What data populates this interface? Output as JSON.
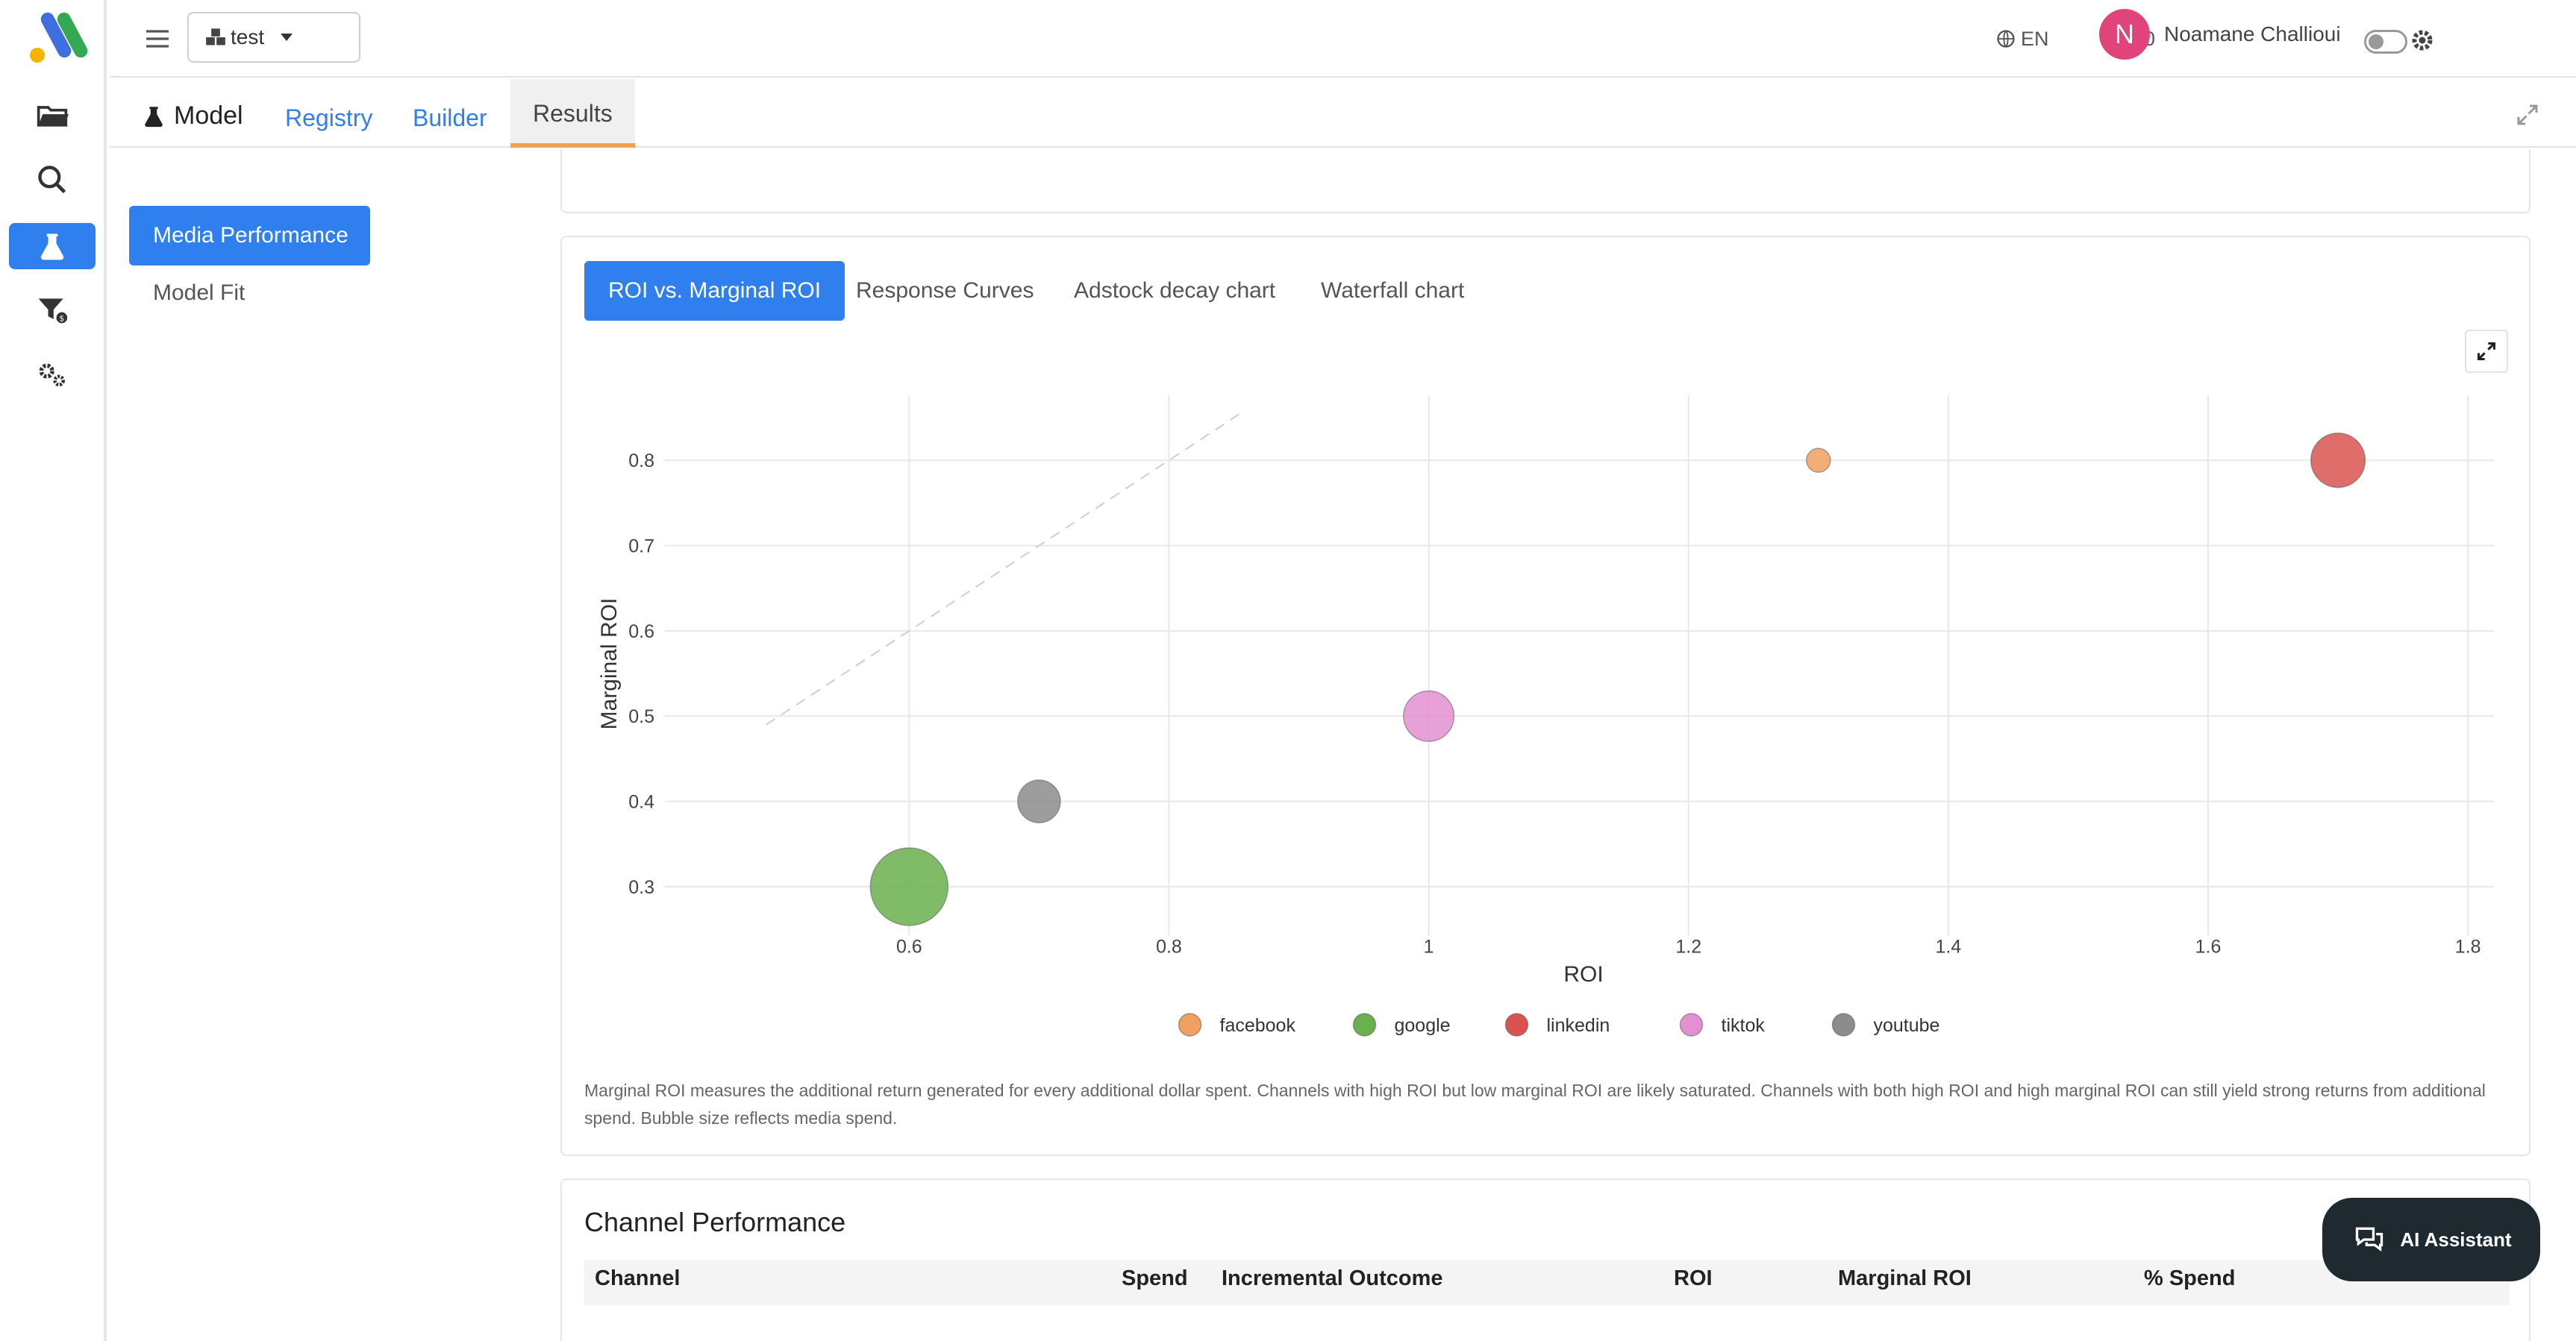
{
  "topbar": {
    "project": "test",
    "language": "EN",
    "counter": "90",
    "avatar_letter": "N",
    "username": "Noamane Challioui"
  },
  "tabs": {
    "model_label": "Model",
    "items": [
      "Registry",
      "Builder",
      "Results"
    ]
  },
  "leftnav": {
    "active": "Media Performance",
    "item": "Model Fit"
  },
  "chart_tabs": [
    "ROI vs. Marginal ROI",
    "Response Curves",
    "Adstock decay chart",
    "Waterfall chart"
  ],
  "chart_data": {
    "type": "scatter",
    "title": "",
    "xlabel": "ROI",
    "ylabel": "Marginal ROI",
    "xlim": [
      0.42,
      1.82
    ],
    "ylim": [
      0.25,
      0.85
    ],
    "xticks": [
      "0.6",
      "0.8",
      "1",
      "1.2",
      "1.4",
      "1.6",
      "1.8"
    ],
    "yticks": [
      "0.3",
      "0.4",
      "0.5",
      "0.6",
      "0.7",
      "0.8"
    ],
    "grid": true,
    "legend_position": "bottom-center",
    "reference_line": "y = x (dashed)",
    "series": [
      {
        "name": "facebook",
        "x": 1.3,
        "y": 0.8,
        "size_rel": 0.3,
        "color": "#f0a060"
      },
      {
        "name": "google",
        "x": 0.6,
        "y": 0.3,
        "size_rel": 1.0,
        "color": "#6ab04c"
      },
      {
        "name": "linkedin",
        "x": 1.7,
        "y": 0.8,
        "size_rel": 0.7,
        "color": "#d9534f"
      },
      {
        "name": "tiktok",
        "x": 1.0,
        "y": 0.5,
        "size_rel": 0.65,
        "color": "#e38fd1"
      },
      {
        "name": "youtube",
        "x": 0.7,
        "y": 0.4,
        "size_rel": 0.55,
        "color": "#8c8c8c"
      }
    ]
  },
  "caption": "Marginal ROI measures the additional return generated for every additional dollar spent. Channels with high ROI but low marginal ROI are likely saturated. Channels with both high ROI and high marginal ROI can still yield strong returns from additional spend. Bubble size reflects media spend.",
  "performance": {
    "title": "Channel Performance",
    "columns": [
      "Channel",
      "Spend",
      "Incremental Outcome",
      "ROI",
      "Marginal ROI",
      "% Spend"
    ]
  },
  "ai_button": "AI Assistant"
}
